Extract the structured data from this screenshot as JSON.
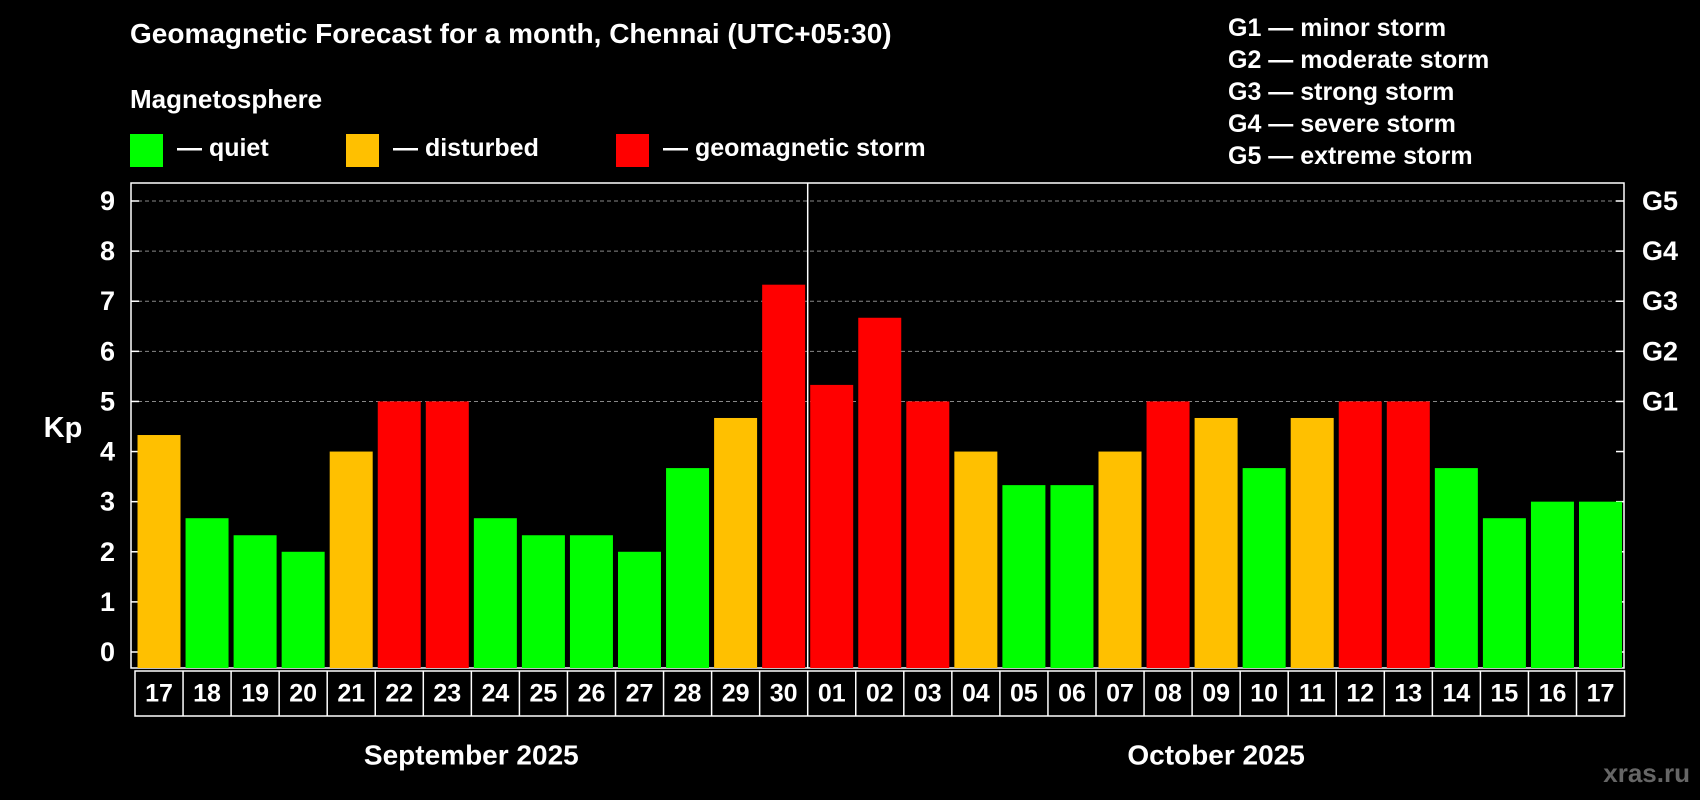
{
  "chart_data": {
    "type": "bar",
    "title": "Geomagnetic Forecast for a month, Chennai (UTC+05:30)",
    "subtitle": "Magnetosphere",
    "ylabel": "Kp",
    "ylim": [
      0,
      9
    ],
    "yticks": [
      "0",
      "1",
      "2",
      "3",
      "4",
      "5",
      "6",
      "7",
      "8",
      "9"
    ],
    "right_ticks": [
      {
        "kp": 5,
        "label": "G1"
      },
      {
        "kp": 6,
        "label": "G2"
      },
      {
        "kp": 7,
        "label": "G3"
      },
      {
        "kp": 8,
        "label": "G4"
      },
      {
        "kp": 9,
        "label": "G5"
      }
    ],
    "categories": [
      "17",
      "18",
      "19",
      "20",
      "21",
      "22",
      "23",
      "24",
      "25",
      "26",
      "27",
      "28",
      "29",
      "30",
      "01",
      "02",
      "03",
      "04",
      "05",
      "06",
      "07",
      "08",
      "09",
      "10",
      "11",
      "12",
      "13",
      "14",
      "15",
      "16",
      "17"
    ],
    "values": [
      4.33,
      2.67,
      2.33,
      2.0,
      4.0,
      5.0,
      5.0,
      2.67,
      2.33,
      2.33,
      2.0,
      3.67,
      4.67,
      7.33,
      5.33,
      6.67,
      5.0,
      4.0,
      3.33,
      3.33,
      4.0,
      5.0,
      4.67,
      3.67,
      4.67,
      5.0,
      5.0,
      3.67,
      2.67,
      3.0,
      3.0
    ],
    "bar_classes": [
      "disturbed",
      "quiet",
      "quiet",
      "quiet",
      "disturbed",
      "storm",
      "storm",
      "quiet",
      "quiet",
      "quiet",
      "quiet",
      "quiet",
      "disturbed",
      "storm",
      "storm",
      "storm",
      "storm",
      "disturbed",
      "quiet",
      "quiet",
      "disturbed",
      "storm",
      "disturbed",
      "quiet",
      "disturbed",
      "storm",
      "storm",
      "quiet",
      "quiet",
      "quiet",
      "quiet"
    ],
    "month_labels": [
      "September 2025",
      "October 2025"
    ],
    "month_split_index": 14,
    "legend": [
      {
        "key": "quiet",
        "label": "— quiet",
        "color": "#00ff00"
      },
      {
        "key": "disturbed",
        "label": "— disturbed",
        "color": "#ffc000"
      },
      {
        "key": "storm",
        "label": "— geomagnetic storm",
        "color": "#ff0000"
      }
    ],
    "g_legend": [
      "G1 — minor storm",
      "G2 — moderate storm",
      "G3 — strong storm",
      "G4 — severe storm",
      "G5 — extreme storm"
    ],
    "grid": "dashed at Kp 5-9"
  },
  "watermark": "xras.ru"
}
